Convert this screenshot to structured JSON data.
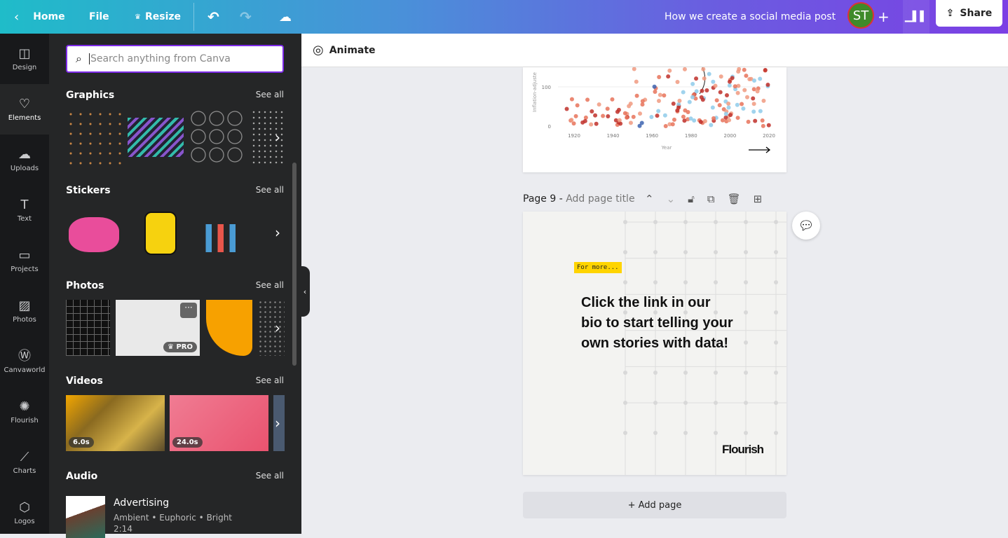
{
  "topbar": {
    "home": "Home",
    "file": "File",
    "resize": "Resize",
    "title": "How we create a social media post",
    "avatar": "ST",
    "share": "Share"
  },
  "rail": [
    {
      "label": "Design",
      "icon": "layout-icon"
    },
    {
      "label": "Elements",
      "icon": "shapes-icon"
    },
    {
      "label": "Uploads",
      "icon": "cloud-upload-icon"
    },
    {
      "label": "Text",
      "icon": "text-icon"
    },
    {
      "label": "Projects",
      "icon": "folder-icon"
    },
    {
      "label": "Photos",
      "icon": "image-icon"
    },
    {
      "label": "Canvaworld",
      "icon": "canvaworld-icon"
    },
    {
      "label": "Flourish",
      "icon": "flourish-icon"
    },
    {
      "label": "Charts",
      "icon": "chart-line-icon"
    },
    {
      "label": "Logos",
      "icon": "logo-icon"
    }
  ],
  "panel": {
    "search_placeholder": "Search anything from Canva",
    "see_all": "See all",
    "sections": [
      "Graphics",
      "Stickers",
      "Photos",
      "Videos",
      "Audio"
    ],
    "pro": "PRO",
    "video_durations": [
      "6.0s",
      "24.0s"
    ],
    "audio": {
      "title": "Advertising",
      "tags": "Ambient • Euphoric • Bright",
      "duration": "2:14"
    }
  },
  "editor": {
    "animate": "Animate",
    "page_label": "Page 9 -",
    "page_title_placeholder": "Add page title",
    "add_page": "+ Add page"
  },
  "chart": {
    "y_ticks": [
      "0",
      "100"
    ],
    "x_ticks": [
      "1920",
      "1940",
      "1960",
      "1980",
      "2000",
      "2020"
    ],
    "xlabel": "Year",
    "ylabel": "Inflation-adjuste"
  },
  "page9": {
    "tag": "For more...",
    "text": "Click the link in our bio to start telling your own stories with data!",
    "logo": "Flourish"
  },
  "colors": {
    "accent": "#7d2ae8",
    "panel": "#252627",
    "rail": "#18191b"
  }
}
